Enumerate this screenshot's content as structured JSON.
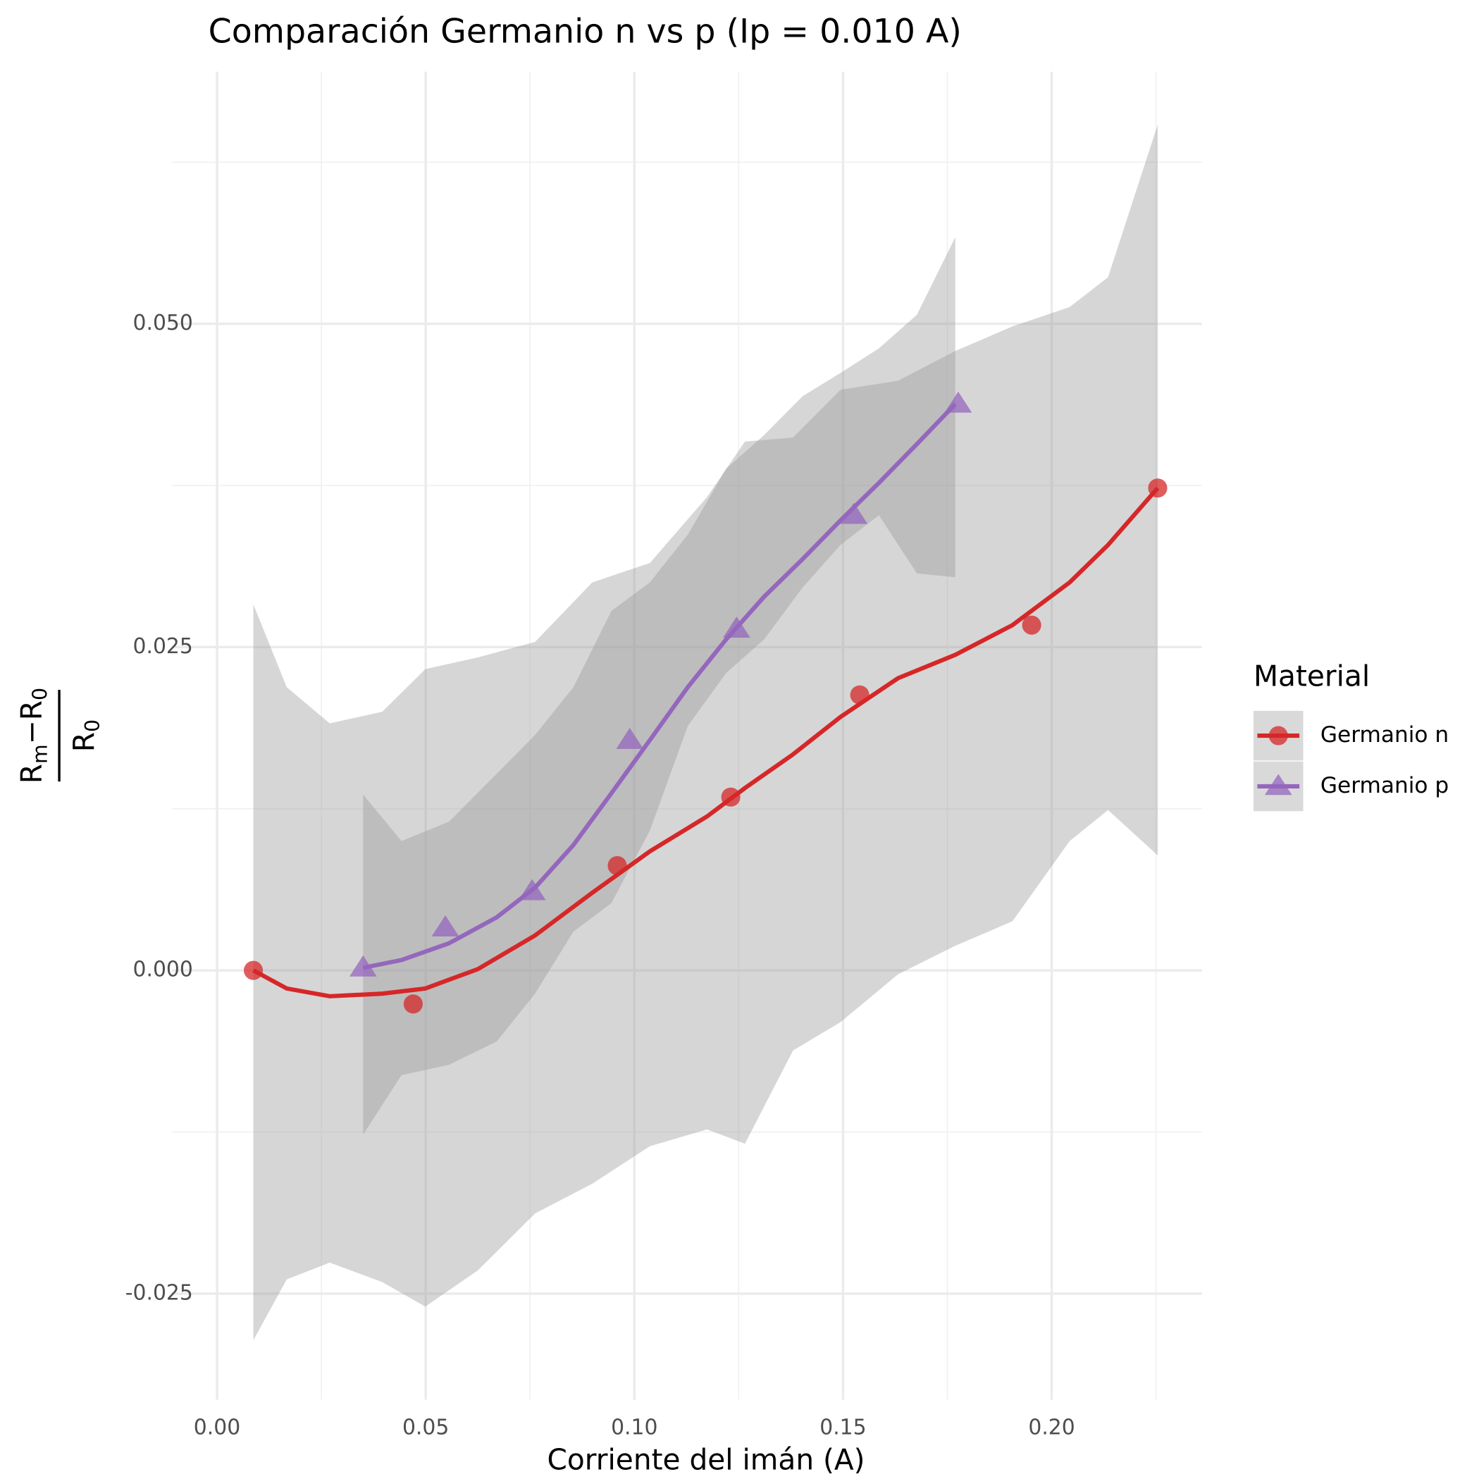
{
  "chart_data": {
    "type": "scatter",
    "title": "Comparación Germanio n vs p (Ip = 0.010 A)",
    "xlabel": "Corriente del imán (A)",
    "ylabel": {
      "numerator": [
        "R",
        "m",
        "−R",
        "0"
      ],
      "denominator": [
        "R",
        "0"
      ]
    },
    "legend_title": "Material",
    "legend_position": "right",
    "grid": true,
    "xlim": [
      -0.0108,
      0.236
    ],
    "ylim": [
      -0.0332,
      0.0695
    ],
    "xticks": [
      {
        "value": 0,
        "label": "0.00"
      },
      {
        "value": 0.05,
        "label": "0.05"
      },
      {
        "value": 0.1,
        "label": "0.10"
      },
      {
        "value": 0.15,
        "label": "0.15"
      },
      {
        "value": 0.2,
        "label": "0.20"
      }
    ],
    "yticks": [
      -0.025,
      {
        "value": 0,
        "label": "0.000"
      },
      0.025,
      {
        "value": 0.05,
        "label": "0.050"
      }
    ],
    "series": [
      {
        "name": "Germanio n",
        "color": "#d62728",
        "shape": "circle",
        "x": [
          0.0087,
          0.047,
          0.0959,
          0.1231,
          0.154,
          0.1952,
          0.2254
        ],
        "values": [
          0.0,
          -0.0026,
          0.0081,
          0.0134,
          0.0213,
          0.0267,
          0.0373
        ],
        "fit_x": [
          0.0087,
          0.0167,
          0.027,
          0.0396,
          0.0499,
          0.0625,
          0.0762,
          0.0899,
          0.1037,
          0.1174,
          0.1265,
          0.138,
          0.1494,
          0.1632,
          0.1769,
          0.1906,
          0.2043,
          0.2135,
          0.2254
        ],
        "fit": [
          0,
          -0.0014,
          -0.002,
          -0.0018,
          -0.0014,
          0.0001,
          0.0027,
          0.006,
          0.0092,
          0.0119,
          0.0141,
          0.0167,
          0.0196,
          0.0226,
          0.0244,
          0.0267,
          0.03,
          0.0329,
          0.0373
        ],
        "fit_lower": [
          -0.0286,
          -0.0239,
          -0.0226,
          -0.0241,
          -0.026,
          -0.0232,
          -0.0188,
          -0.0165,
          -0.0136,
          -0.0123,
          -0.0134,
          -0.0062,
          -0.004,
          -0.0003,
          0.0019,
          0.0038,
          0.01,
          0.0124,
          0.0089
        ],
        "fit_upper": [
          0.0283,
          0.0219,
          0.0191,
          0.02,
          0.0233,
          0.0242,
          0.0254,
          0.03,
          0.0315,
          0.0366,
          0.0409,
          0.0412,
          0.0449,
          0.0456,
          0.0479,
          0.0498,
          0.0513,
          0.0536,
          0.0654
        ]
      },
      {
        "name": "Germanio p",
        "color": "#9467bd",
        "shape": "triangle",
        "x": [
          0.035,
          0.0547,
          0.0755,
          0.0989,
          0.1245,
          0.1526,
          0.1776
        ],
        "values": [
          0.0002,
          0.0033,
          0.0061,
          0.0178,
          0.0264,
          0.0352,
          0.0438
        ],
        "fit_x": [
          0.035,
          0.0442,
          0.0556,
          0.067,
          0.0762,
          0.0854,
          0.0945,
          0.1037,
          0.1128,
          0.122,
          0.1311,
          0.1403,
          0.1494,
          0.1586,
          0.1677,
          0.1769
        ],
        "fit": [
          0.0002,
          0.0008,
          0.0021,
          0.0041,
          0.0064,
          0.0097,
          0.0137,
          0.0178,
          0.0219,
          0.0256,
          0.0289,
          0.0318,
          0.0348,
          0.0377,
          0.0407,
          0.0438
        ],
        "fit_lower": [
          -0.0127,
          -0.0081,
          -0.0073,
          -0.0055,
          -0.0018,
          0.003,
          0.0052,
          0.0108,
          0.0189,
          0.023,
          0.0256,
          0.0296,
          0.0329,
          0.0352,
          0.0307,
          0.0304
        ],
        "fit_upper": [
          0.0136,
          0.01,
          0.0115,
          0.0152,
          0.0182,
          0.0219,
          0.0278,
          0.03,
          0.0337,
          0.0388,
          0.0414,
          0.0444,
          0.0462,
          0.0481,
          0.0507,
          0.0567
        ]
      }
    ]
  }
}
